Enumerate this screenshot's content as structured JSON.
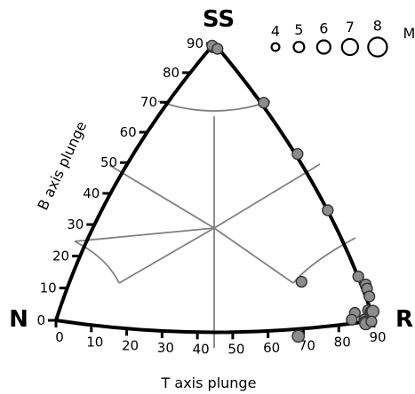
{
  "chart_data": {
    "type": "scatter",
    "subtype": "ternary focal-mechanism diagram",
    "vertices": {
      "top": "SS",
      "left": "N",
      "right": "R"
    },
    "axes": {
      "b_axis": {
        "label": "B axis plunge",
        "ticks": [
          "0",
          "10",
          "20",
          "30",
          "40",
          "50",
          "60",
          "70",
          "80",
          "90"
        ]
      },
      "t_axis": {
        "label": "T axis plunge",
        "ticks": [
          "0",
          "10",
          "20",
          "30",
          "40",
          "50",
          "60",
          "70",
          "80",
          "90"
        ]
      }
    },
    "legend": {
      "title": "Mw",
      "placement": "top-right",
      "entries": [
        {
          "label": "4",
          "mw": 4
        },
        {
          "label": "5",
          "mw": 5
        },
        {
          "label": "6",
          "mw": 6
        },
        {
          "label": "7",
          "mw": 7
        },
        {
          "label": "8",
          "mw": 8
        }
      ]
    },
    "points": [
      {
        "b": 76,
        "t": 6,
        "mw": 5
      },
      {
        "b": 80,
        "t": 3,
        "mw": 5
      },
      {
        "b": 74,
        "t": 10,
        "mw": 5
      },
      {
        "b": 54,
        "t": 30,
        "mw": 5
      },
      {
        "b": 45,
        "t": 39,
        "mw": 5
      },
      {
        "b": 36,
        "t": 47,
        "mw": 5
      },
      {
        "b": 22,
        "t": 45,
        "mw": 5
      },
      {
        "b": 24,
        "t": 59,
        "mw": 5
      },
      {
        "b": 23,
        "t": 68,
        "mw": 5
      },
      {
        "b": 22,
        "t": 71,
        "mw": 5
      },
      {
        "b": 19,
        "t": 71,
        "mw": 5
      },
      {
        "b": 13,
        "t": 62,
        "mw": 5
      },
      {
        "b": 10,
        "t": 63,
        "mw": 5
      },
      {
        "b": 13,
        "t": 69,
        "mw": 5
      },
      {
        "b": 12,
        "t": 72,
        "mw": 5
      },
      {
        "b": 12,
        "t": 75,
        "mw": 5.5
      },
      {
        "b": 12,
        "t": 79,
        "mw": 5.5
      },
      {
        "b": 8,
        "t": 70,
        "mw": 5
      },
      {
        "b": 6,
        "t": 72,
        "mw": 5
      },
      {
        "b": 2,
        "t": 77,
        "mw": 5
      },
      {
        "b": 1,
        "t": 77,
        "mw": 5.5
      },
      {
        "b": 1,
        "t": 82,
        "mw": 5
      },
      {
        "b": 3,
        "t": 56,
        "mw": 5.5
      }
    ]
  }
}
